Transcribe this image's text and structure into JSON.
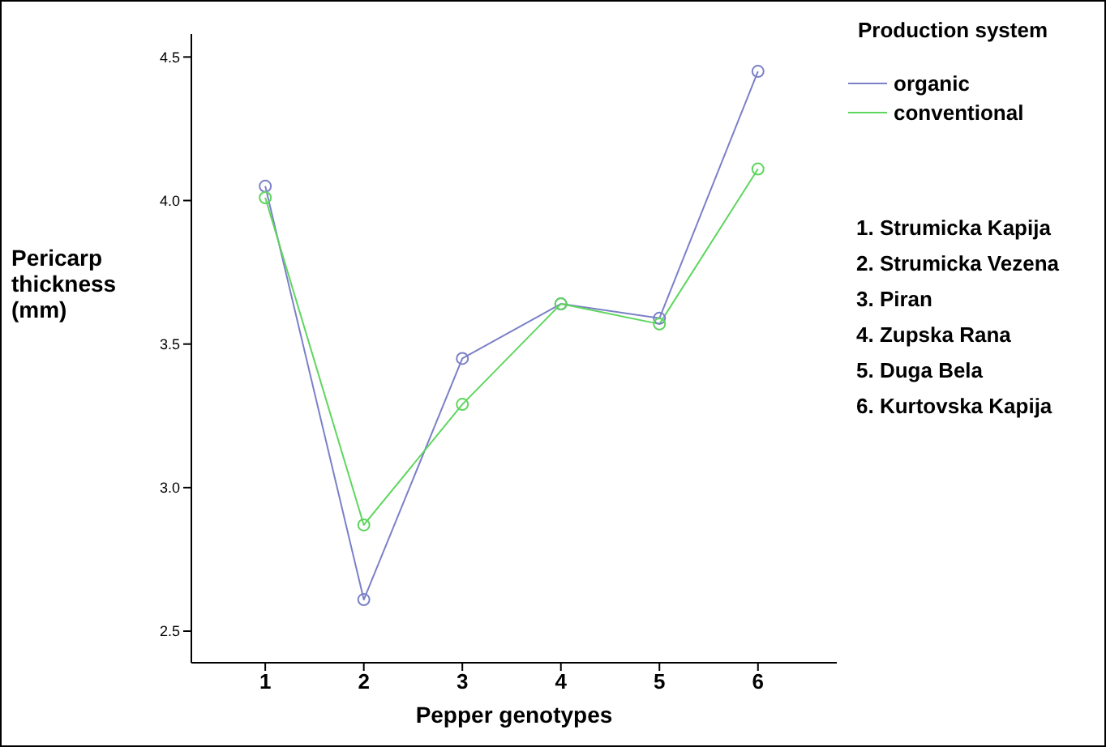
{
  "chart_data": {
    "type": "line",
    "xlabel": "Pepper genotypes",
    "ylabel": "Pericarp thickness (mm)",
    "legend_title": "Production system",
    "legend": "right",
    "grid": false,
    "marker": "circle",
    "line_style": "solid",
    "x": [
      1,
      2,
      3,
      4,
      5,
      6
    ],
    "xlim": [
      0.25,
      6.8
    ],
    "xticks": [
      1,
      2,
      3,
      4,
      5,
      6
    ],
    "ylim": [
      2.39,
      4.58
    ],
    "yticks": [
      2.5,
      {
        "value": 3,
        "label": "3.0"
      },
      3.5,
      {
        "value": 4,
        "label": "4.0"
      },
      4.5
    ],
    "series": [
      {
        "name": "organic",
        "color": "#7b80c8",
        "values": [
          4.05,
          2.61,
          3.45,
          3.64,
          3.59,
          4.45
        ]
      },
      {
        "name": "conventional",
        "color": "#5ed65e",
        "values": [
          4.01,
          2.87,
          3.29,
          3.64,
          3.57,
          4.11
        ]
      }
    ],
    "annotations": [
      "1. Strumicka Kapija",
      "2. Strumicka Vezena",
      "3. Piran",
      "4. Zupska Rana",
      "5. Duga Bela",
      "6. Kurtovska Kapija"
    ]
  }
}
